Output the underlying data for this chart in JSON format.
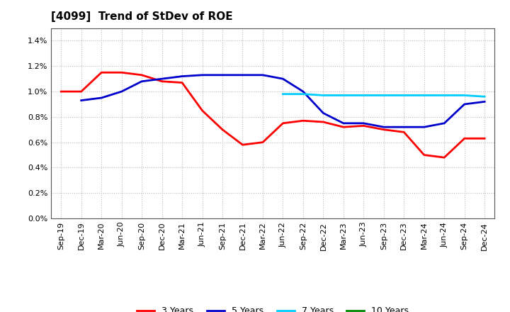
{
  "title": "[4099]  Trend of StDev of ROE",
  "ylim": [
    0.0,
    0.015
  ],
  "yticks": [
    0.0,
    0.002,
    0.004,
    0.006,
    0.008,
    0.01,
    0.012,
    0.014
  ],
  "x_labels": [
    "Sep-19",
    "Dec-19",
    "Mar-20",
    "Jun-20",
    "Sep-20",
    "Dec-20",
    "Mar-21",
    "Jun-21",
    "Sep-21",
    "Dec-21",
    "Mar-22",
    "Jun-22",
    "Sep-22",
    "Dec-22",
    "Mar-23",
    "Jun-23",
    "Sep-23",
    "Dec-23",
    "Mar-24",
    "Jun-24",
    "Sep-24",
    "Dec-24"
  ],
  "series": {
    "3 Years": {
      "color": "#ff0000",
      "values": [
        0.01,
        0.01,
        0.0115,
        0.0115,
        0.0113,
        0.0108,
        0.0107,
        0.0085,
        0.007,
        0.0058,
        0.006,
        0.0075,
        0.0077,
        0.0076,
        0.0072,
        0.0073,
        0.007,
        0.0068,
        0.005,
        0.0048,
        0.0063,
        0.0063
      ]
    },
    "5 Years": {
      "color": "#0000cc",
      "values": [
        null,
        0.0093,
        0.0095,
        0.01,
        0.0108,
        0.011,
        0.0112,
        0.0113,
        0.0113,
        0.0113,
        0.0113,
        0.011,
        0.01,
        0.0083,
        0.0075,
        0.0075,
        0.0072,
        0.0072,
        0.0072,
        0.0075,
        0.009,
        0.0092
      ]
    },
    "7 Years": {
      "color": "#00ccff",
      "values": [
        null,
        null,
        null,
        null,
        null,
        null,
        null,
        null,
        null,
        null,
        null,
        0.0098,
        0.0098,
        0.0097,
        0.0097,
        0.0097,
        0.0097,
        0.0097,
        0.0097,
        0.0097,
        0.0097,
        0.0096
      ]
    },
    "10 Years": {
      "color": "#008800",
      "values": [
        null,
        null,
        null,
        null,
        null,
        null,
        null,
        null,
        null,
        null,
        null,
        null,
        null,
        null,
        null,
        null,
        null,
        null,
        null,
        null,
        null,
        null
      ]
    }
  },
  "legend_order": [
    "3 Years",
    "5 Years",
    "7 Years",
    "10 Years"
  ],
  "background_color": "#ffffff",
  "grid_color": "#bbbbbb",
  "title_fontsize": 11,
  "tick_fontsize": 8,
  "legend_fontsize": 9
}
